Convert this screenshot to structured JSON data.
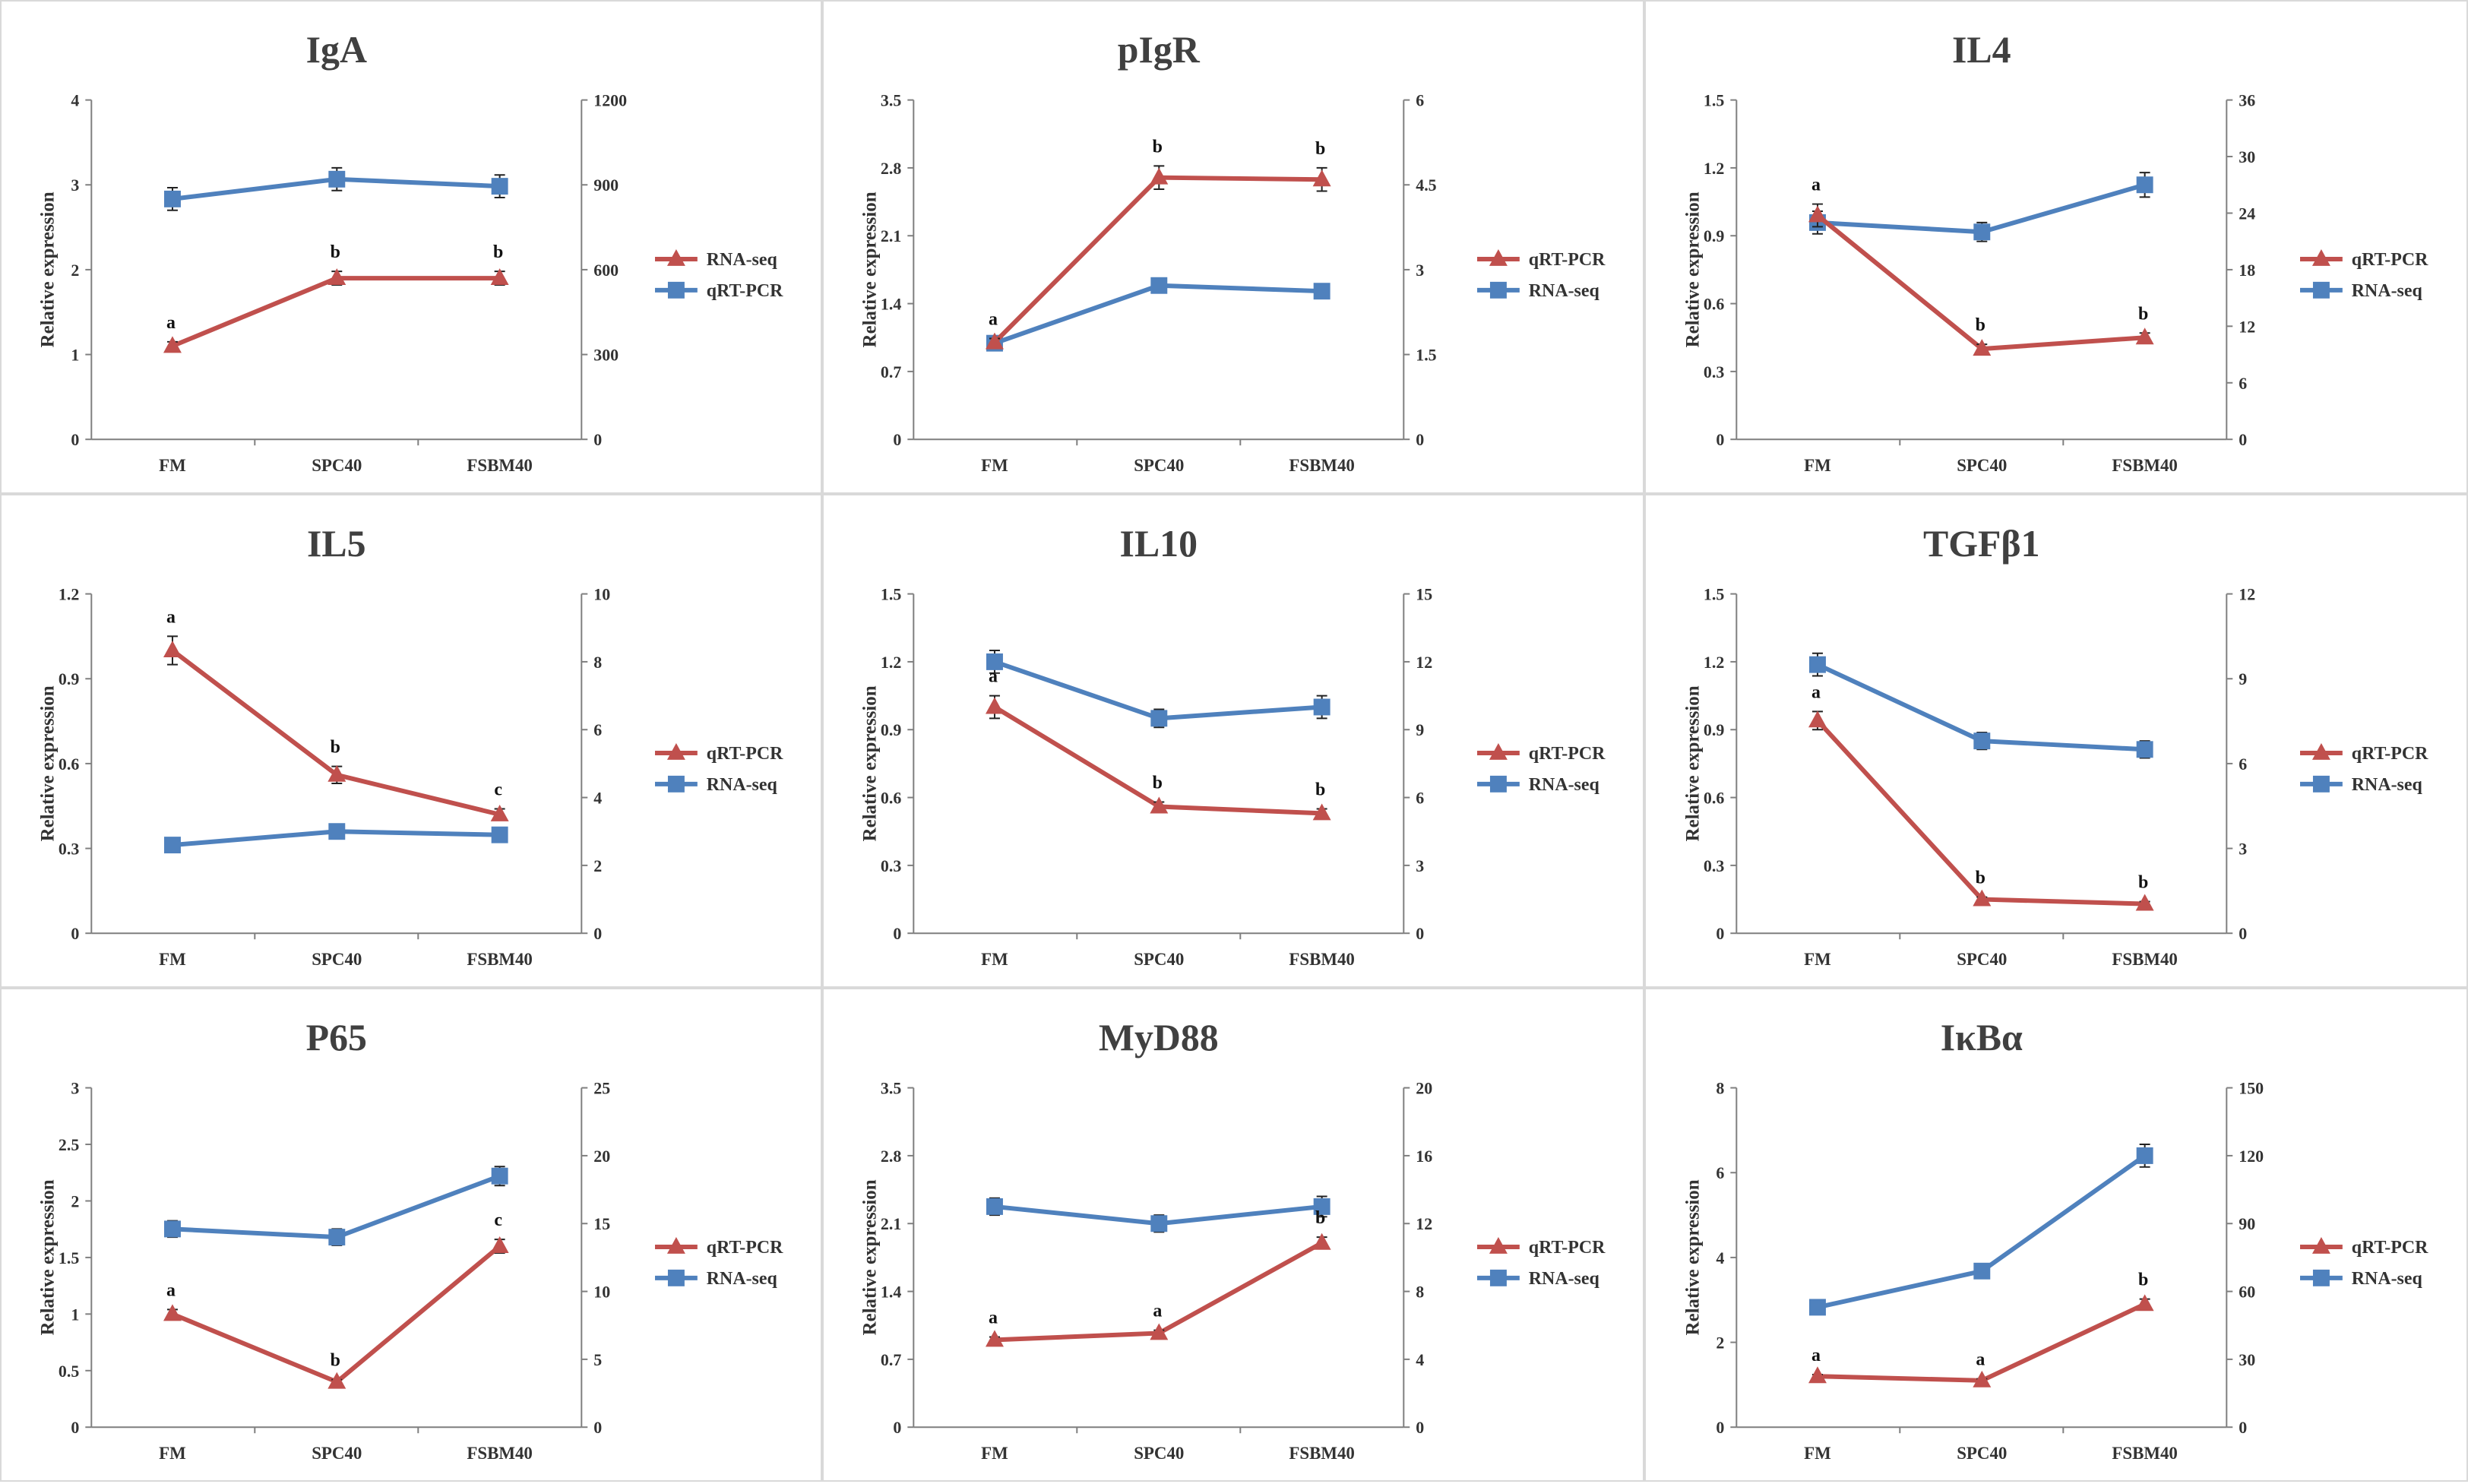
{
  "colors": {
    "red": "#C0504D",
    "blue": "#4F81BD",
    "axis": "#7f7f7f",
    "text": "#333333"
  },
  "chart_data": [
    {
      "type": "line",
      "title": "IgA",
      "ylabel": "Relative expression",
      "categories": [
        "FM",
        "SPC40",
        "FSBM40"
      ],
      "ylim": [
        0,
        4
      ],
      "yticks": [
        "0",
        "1",
        "2",
        "3",
        "4"
      ],
      "y2lim": [
        0,
        1200
      ],
      "y2ticks": [
        "0",
        "300",
        "600",
        "900",
        "1200"
      ],
      "series": [
        {
          "name": "RNA-seq",
          "color": "red",
          "marker": "triangle",
          "axis": "left",
          "values": [
            1.1,
            1.9,
            1.9
          ],
          "errors": [
            0.05,
            0.08,
            0.08
          ]
        },
        {
          "name": "qRT-PCR",
          "color": "blue",
          "marker": "square",
          "axis": "right",
          "values": [
            850,
            920,
            895
          ],
          "errors": [
            40,
            40,
            40
          ]
        }
      ],
      "letters": {
        "series": 0,
        "labels": [
          "a",
          "b",
          "b"
        ]
      }
    },
    {
      "type": "line",
      "title": "pIgR",
      "ylabel": "Relative expression",
      "categories": [
        "FM",
        "SPC40",
        "FSBM40"
      ],
      "ylim": [
        0,
        3.5
      ],
      "yticks": [
        "0",
        "0.7",
        "1.4",
        "2.1",
        "2.8",
        "3.5"
      ],
      "y2lim": [
        0,
        6
      ],
      "y2ticks": [
        "0",
        "1.5",
        "3",
        "4.5",
        "6"
      ],
      "series": [
        {
          "name": "qRT-PCR",
          "color": "red",
          "marker": "triangle",
          "axis": "left",
          "values": [
            1.0,
            2.7,
            2.68
          ],
          "errors": [
            0.04,
            0.12,
            0.12
          ]
        },
        {
          "name": "RNA-seq",
          "color": "blue",
          "marker": "square",
          "axis": "right",
          "values": [
            1.7,
            2.72,
            2.62
          ],
          "errors": [
            0.05,
            0.1,
            0.08
          ]
        }
      ],
      "letters": {
        "series": 0,
        "labels": [
          "a",
          "b",
          "b"
        ]
      }
    },
    {
      "type": "line",
      "title": "IL4",
      "ylabel": "Relative expression",
      "categories": [
        "FM",
        "SPC40",
        "FSBM40"
      ],
      "ylim": [
        0,
        1.5
      ],
      "yticks": [
        "0",
        "0.3",
        "0.6",
        "0.9",
        "1.2",
        "1.5"
      ],
      "y2lim": [
        0,
        36
      ],
      "y2ticks": [
        "0",
        "6",
        "12",
        "18",
        "24",
        "30",
        "36"
      ],
      "series": [
        {
          "name": "qRT-PCR",
          "color": "red",
          "marker": "triangle",
          "axis": "left",
          "values": [
            0.99,
            0.4,
            0.45
          ],
          "errors": [
            0.05,
            0.02,
            0.02
          ]
        },
        {
          "name": "RNA-seq",
          "color": "blue",
          "marker": "square",
          "axis": "right",
          "values": [
            23,
            22,
            27
          ],
          "errors": [
            1.2,
            1.0,
            1.3
          ]
        }
      ],
      "letters": {
        "series": 0,
        "labels": [
          "a",
          "b",
          "b"
        ]
      }
    },
    {
      "type": "line",
      "title": "IL5",
      "ylabel": "Relative expression",
      "categories": [
        "FM",
        "SPC40",
        "FSBM40"
      ],
      "ylim": [
        0,
        1.2
      ],
      "yticks": [
        "0",
        "0.3",
        "0.6",
        "0.9",
        "1.2"
      ],
      "y2lim": [
        0,
        10
      ],
      "y2ticks": [
        "0",
        "2",
        "4",
        "6",
        "8",
        "10"
      ],
      "series": [
        {
          "name": "qRT-PCR",
          "color": "red",
          "marker": "triangle",
          "axis": "left",
          "values": [
            1.0,
            0.56,
            0.42
          ],
          "errors": [
            0.05,
            0.03,
            0.02
          ]
        },
        {
          "name": "RNA-seq",
          "color": "blue",
          "marker": "square",
          "axis": "right",
          "values": [
            2.6,
            3.0,
            2.9
          ],
          "errors": [
            0.1,
            0.1,
            0.1
          ]
        }
      ],
      "letters": {
        "series": 0,
        "labels": [
          "a",
          "b",
          "c"
        ]
      }
    },
    {
      "type": "line",
      "title": "IL10",
      "ylabel": "Relative expression",
      "categories": [
        "FM",
        "SPC40",
        "FSBM40"
      ],
      "ylim": [
        0,
        1.5
      ],
      "yticks": [
        "0",
        "0.3",
        "0.6",
        "0.9",
        "1.2",
        "1.5"
      ],
      "y2lim": [
        0,
        15
      ],
      "y2ticks": [
        "0",
        "3",
        "6",
        "9",
        "12",
        "15"
      ],
      "series": [
        {
          "name": "qRT-PCR",
          "color": "red",
          "marker": "triangle",
          "axis": "left",
          "values": [
            1.0,
            0.56,
            0.53
          ],
          "errors": [
            0.05,
            0.02,
            0.02
          ]
        },
        {
          "name": "RNA-seq",
          "color": "blue",
          "marker": "square",
          "axis": "right",
          "values": [
            12,
            9.5,
            10
          ],
          "errors": [
            0.5,
            0.4,
            0.5
          ]
        }
      ],
      "letters": {
        "series": 0,
        "labels": [
          "a",
          "b",
          "b"
        ]
      }
    },
    {
      "type": "line",
      "title": "TGFβ1",
      "ylabel": "Relative expression",
      "categories": [
        "FM",
        "SPC40",
        "FSBM40"
      ],
      "ylim": [
        0,
        1.5
      ],
      "yticks": [
        "0",
        "0.3",
        "0.6",
        "0.9",
        "1.2",
        "1.5"
      ],
      "y2lim": [
        0,
        12
      ],
      "y2ticks": [
        "0",
        "3",
        "6",
        "9",
        "12"
      ],
      "series": [
        {
          "name": "qRT-PCR",
          "color": "red",
          "marker": "triangle",
          "axis": "left",
          "values": [
            0.94,
            0.15,
            0.13
          ],
          "errors": [
            0.04,
            0.01,
            0.01
          ]
        },
        {
          "name": "RNA-seq",
          "color": "blue",
          "marker": "square",
          "axis": "right",
          "values": [
            9.5,
            6.8,
            6.5
          ],
          "errors": [
            0.4,
            0.3,
            0.3
          ]
        }
      ],
      "letters": {
        "series": 0,
        "labels": [
          "a",
          "b",
          "b"
        ]
      }
    },
    {
      "type": "line",
      "title": "P65",
      "ylabel": "Relative expression",
      "categories": [
        "FM",
        "SPC40",
        "FSBM40"
      ],
      "ylim": [
        0,
        3
      ],
      "yticks": [
        "0",
        "0.5",
        "1",
        "1.5",
        "2",
        "2.5",
        "3"
      ],
      "y2lim": [
        0,
        25
      ],
      "y2ticks": [
        "0",
        "5",
        "10",
        "15",
        "20",
        "25"
      ],
      "series": [
        {
          "name": "qRT-PCR",
          "color": "red",
          "marker": "triangle",
          "axis": "left",
          "values": [
            1.0,
            0.4,
            1.6
          ],
          "errors": [
            0.04,
            0.02,
            0.06
          ]
        },
        {
          "name": "RNA-seq",
          "color": "blue",
          "marker": "square",
          "axis": "right",
          "values": [
            14.6,
            14.0,
            18.5
          ],
          "errors": [
            0.6,
            0.6,
            0.7
          ]
        }
      ],
      "letters": {
        "series": 0,
        "labels": [
          "a",
          "b",
          "c"
        ]
      }
    },
    {
      "type": "line",
      "title": "MyD88",
      "ylabel": "Relative expression",
      "categories": [
        "FM",
        "SPC40",
        "FSBM40"
      ],
      "ylim": [
        0,
        3.5
      ],
      "yticks": [
        "0",
        "0.7",
        "1.4",
        "2.1",
        "2.8",
        "3.5"
      ],
      "y2lim": [
        0,
        20
      ],
      "y2ticks": [
        "0",
        "4",
        "8",
        "12",
        "16",
        "20"
      ],
      "series": [
        {
          "name": "qRT-PCR",
          "color": "red",
          "marker": "triangle",
          "axis": "left",
          "values": [
            0.9,
            0.97,
            1.9
          ],
          "errors": [
            0.03,
            0.03,
            0.06
          ]
        },
        {
          "name": "RNA-seq",
          "color": "blue",
          "marker": "square",
          "axis": "right",
          "values": [
            13,
            12,
            13
          ],
          "errors": [
            0.5,
            0.5,
            0.6
          ]
        }
      ],
      "letters": {
        "series": 0,
        "labels": [
          "a",
          "a",
          "b"
        ]
      }
    },
    {
      "type": "line",
      "title": "IκBα",
      "ylabel": "Relative expression",
      "categories": [
        "FM",
        "SPC40",
        "FSBM40"
      ],
      "ylim": [
        0,
        8
      ],
      "yticks": [
        "0",
        "2",
        "4",
        "6",
        "8"
      ],
      "y2lim": [
        0,
        150
      ],
      "y2ticks": [
        "0",
        "30",
        "60",
        "90",
        "120",
        "150"
      ],
      "series": [
        {
          "name": "qRT-PCR",
          "color": "red",
          "marker": "triangle",
          "axis": "left",
          "values": [
            1.2,
            1.1,
            2.9
          ],
          "errors": [
            0.04,
            0.04,
            0.12
          ]
        },
        {
          "name": "RNA-seq",
          "color": "blue",
          "marker": "square",
          "axis": "right",
          "values": [
            53,
            69,
            120
          ],
          "errors": [
            1.5,
            2,
            5
          ]
        }
      ],
      "letters": {
        "series": 0,
        "labels": [
          "a",
          "a",
          "b"
        ]
      }
    }
  ]
}
